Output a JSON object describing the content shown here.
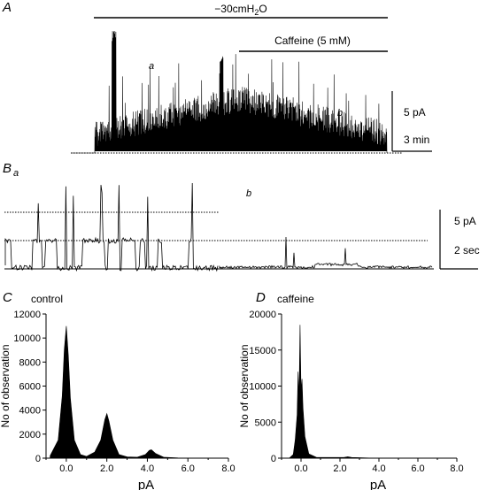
{
  "panels": {
    "A": "A",
    "B": "B",
    "B_sub": "a",
    "C": "C",
    "D": "D"
  },
  "traceA": {
    "pressure_label_prefix": "−30cmH",
    "pressure_label_sub": "2",
    "pressure_label_suffix": "O",
    "caffeine_label": "Caffeine (5 mM)",
    "mark_a": "a",
    "mark_b": "b",
    "scale_y": "5 pA",
    "scale_x": "3 min"
  },
  "traceB": {
    "mark_b": "b",
    "scale_y": "5 pA",
    "scale_x": "2 sec"
  },
  "colors": {
    "ink": "#000000",
    "background": "#ffffff"
  },
  "chart_data": [
    {
      "type": "area",
      "title": "control",
      "xlabel": "pA",
      "ylabel": "No of observation",
      "xlim": [
        -1.0,
        8.0
      ],
      "ylim": [
        0,
        12000
      ],
      "xticks": [
        "0.0",
        "2.0",
        "4.0",
        "6.0",
        "8.0"
      ],
      "yticks": [
        "0",
        "2000",
        "4000",
        "6000",
        "8000",
        "10000",
        "12000"
      ],
      "series": [
        {
          "x": [
            -0.8,
            -0.4,
            -0.2,
            -0.1,
            0.0,
            0.1,
            0.2,
            0.4,
            0.7,
            1.0,
            1.4,
            1.7,
            1.9,
            2.0,
            2.1,
            2.3,
            2.6,
            3.0,
            3.5,
            3.9,
            4.1,
            4.2,
            4.4,
            4.8,
            5.5,
            8.0
          ],
          "values": [
            200,
            1500,
            5200,
            9000,
            11000,
            8500,
            5000,
            1500,
            300,
            150,
            500,
            1500,
            3200,
            3700,
            3100,
            1500,
            300,
            100,
            80,
            300,
            650,
            700,
            400,
            80,
            20,
            0
          ]
        }
      ]
    },
    {
      "type": "area",
      "title": "caffeine",
      "xlabel": "pA",
      "ylabel": "No of observation",
      "xlim": [
        -1.0,
        8.0
      ],
      "ylim": [
        0,
        20000
      ],
      "xticks": [
        "0.0",
        "2.0",
        "4.0",
        "6.0",
        "8.0"
      ],
      "yticks": [
        "0",
        "5000",
        "10000",
        "15000",
        "20000"
      ],
      "series": [
        {
          "x": [
            -0.6,
            -0.4,
            -0.3,
            -0.2,
            -0.15,
            -0.1,
            -0.05,
            0.0,
            0.05,
            0.1,
            0.2,
            0.4,
            0.8,
            2.2,
            2.4,
            2.6,
            3.5,
            8.0
          ],
          "values": [
            0,
            500,
            2500,
            6000,
            12000,
            8500,
            18500,
            9500,
            11000,
            7000,
            3000,
            600,
            100,
            100,
            200,
            100,
            20,
            0
          ]
        }
      ]
    }
  ]
}
